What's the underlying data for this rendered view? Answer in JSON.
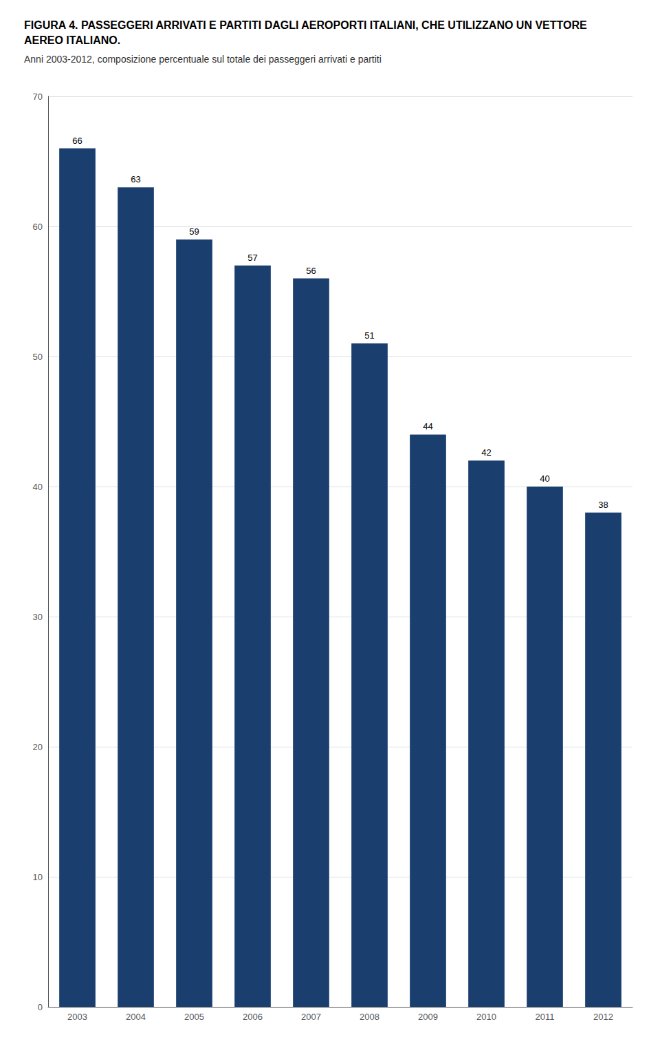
{
  "chart_data": {
    "type": "bar",
    "title": "FIGURA 4. PASSEGGERI ARRIVATI E PARTITI DAGLI AEROPORTI ITALIANI, CHE UTILIZZANO UN VETTORE AEREO ITALIANO.",
    "subtitle": "Anni 2003-2012, composizione percentuale sul totale dei passeggeri arrivati e partiti",
    "categories": [
      "2003",
      "2004",
      "2005",
      "2006",
      "2007",
      "2008",
      "2009",
      "2010",
      "2011",
      "2012"
    ],
    "values": [
      66,
      63,
      59,
      57,
      56,
      51,
      44,
      42,
      40,
      38
    ],
    "color": "#1a3f6f",
    "ylim": [
      0,
      70
    ],
    "yticks": [
      0,
      10,
      20,
      30,
      40,
      50,
      60,
      70
    ],
    "grid": true,
    "data_labels": true
  }
}
